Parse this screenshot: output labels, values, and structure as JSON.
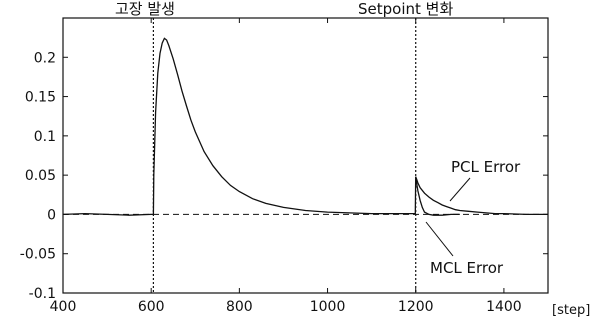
{
  "chart_data": {
    "type": "line",
    "x_unit": "[step]",
    "xlim": [
      400,
      1500
    ],
    "ylim": [
      -0.1,
      0.25
    ],
    "x_ticks": [
      400,
      600,
      800,
      1000,
      1200,
      1400
    ],
    "x_tick_labels": [
      "400",
      "600",
      "800",
      "1000",
      "1200",
      "1400"
    ],
    "y_ticks": [
      -0.1,
      -0.05,
      0,
      0.05,
      0.1,
      0.15,
      0.2
    ],
    "y_tick_labels": [
      "-0.1",
      "-0.05",
      "0",
      "0.05",
      "0.1",
      "0.15",
      "0.2"
    ],
    "grid": false,
    "annotations": {
      "fault_label": "고장 발생",
      "fault_x": 605,
      "setpoint_label": "Setpoint 변화",
      "setpoint_x": 1200,
      "pcl_label": "PCL Error",
      "mcl_label": "MCL Error"
    },
    "series": [
      {
        "label": "PCL Error",
        "style": "solid",
        "x": [
          400,
          450,
          500,
          550,
          600,
          605,
          606,
          610,
          615,
          620,
          625,
          630,
          635,
          640,
          650,
          660,
          670,
          680,
          690,
          700,
          720,
          740,
          760,
          780,
          800,
          830,
          860,
          900,
          950,
          1000,
          1050,
          1100,
          1150,
          1199,
          1200,
          1202,
          1205,
          1210,
          1220,
          1230,
          1240,
          1250,
          1260,
          1270,
          1280,
          1290,
          1300,
          1320,
          1340,
          1360,
          1380,
          1400,
          1450,
          1500
        ],
        "y": [
          0,
          0.001,
          0,
          -0.001,
          0,
          0,
          0.05,
          0.13,
          0.18,
          0.205,
          0.218,
          0.224,
          0.222,
          0.215,
          0.198,
          0.178,
          0.157,
          0.138,
          0.12,
          0.105,
          0.08,
          0.062,
          0.048,
          0.037,
          0.029,
          0.02,
          0.014,
          0.009,
          0.005,
          0.003,
          0.002,
          0.001,
          0.001,
          0.001,
          0.048,
          0.045,
          0.04,
          0.034,
          0.027,
          0.022,
          0.018,
          0.015,
          0.012,
          0.01,
          0.008,
          0.006,
          0.005,
          0.004,
          0.003,
          0.002,
          0.001,
          0.001,
          0,
          0
        ]
      },
      {
        "label": "MCL Error",
        "style": "solid",
        "x": [
          1200,
          1202,
          1205,
          1210,
          1215,
          1220,
          1230,
          1240,
          1260,
          1280,
          1300
        ],
        "y": [
          0.048,
          0.04,
          0.03,
          0.018,
          0.009,
          0.003,
          0,
          -0.001,
          -0.001,
          0,
          0
        ]
      },
      {
        "label": "reference",
        "style": "dashed",
        "x": [
          400,
          1500
        ],
        "y": [
          0,
          0
        ]
      }
    ]
  }
}
